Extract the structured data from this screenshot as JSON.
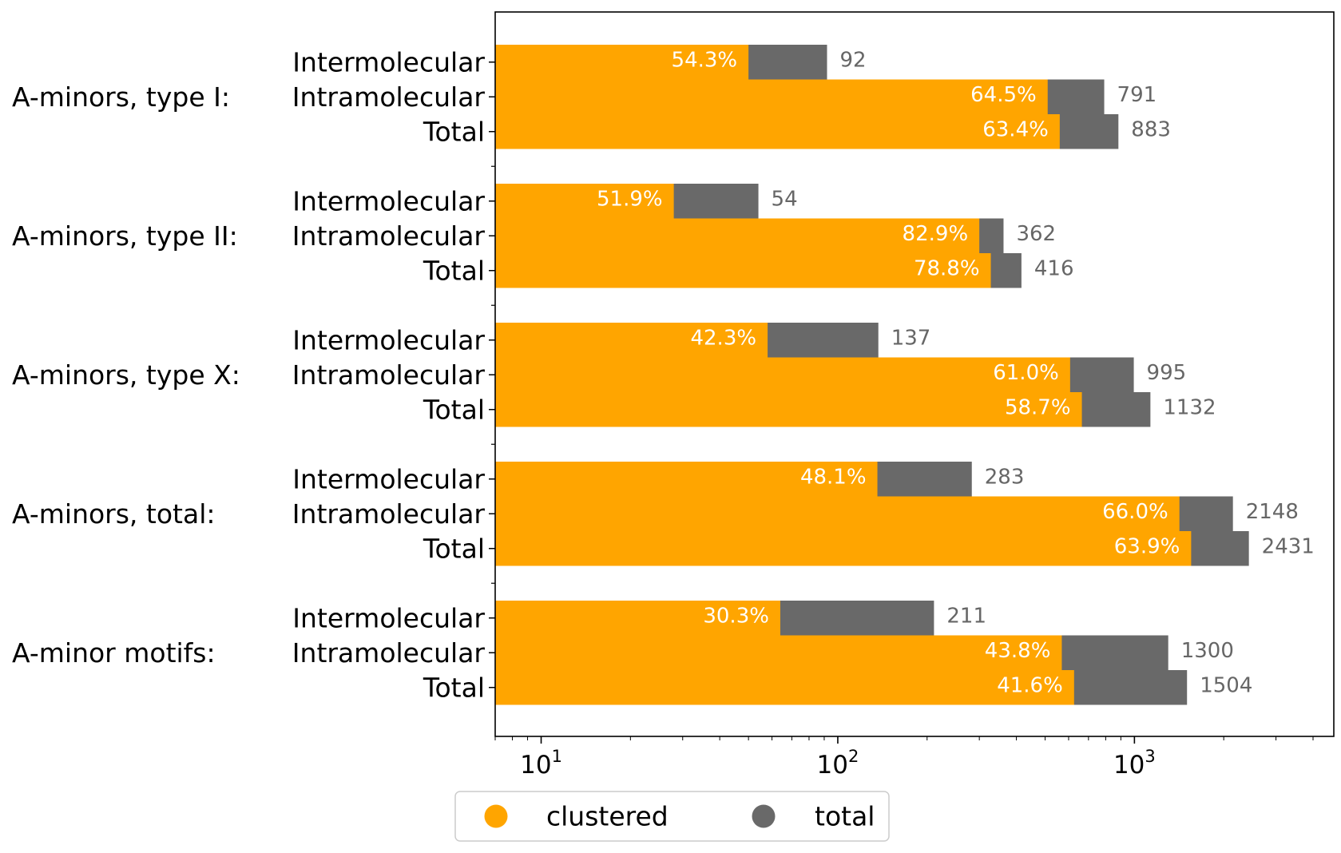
{
  "chart_data": {
    "type": "bar",
    "orientation": "horizontal",
    "x_scale": "log",
    "xlim": [
      7,
      4700
    ],
    "x_ticks": [
      {
        "base": "10",
        "exp": "1",
        "value": 10
      },
      {
        "base": "10",
        "exp": "2",
        "value": 100
      },
      {
        "base": "10",
        "exp": "3",
        "value": 1000
      }
    ],
    "grid": false,
    "legend_position": "bottom-center",
    "colors": {
      "clustered": "#ffa500",
      "total": "#696969"
    },
    "legend": [
      {
        "key": "clustered",
        "label": "clustered"
      },
      {
        "key": "total",
        "label": "total"
      }
    ],
    "groups": [
      {
        "label": "A-minors, type I:",
        "rows": [
          {
            "label": "Intermolecular",
            "total": 92,
            "clustered": 50,
            "pct_label": "54.3%",
            "total_label": "92"
          },
          {
            "label": "Intramolecular",
            "total": 791,
            "clustered": 510,
            "pct_label": "64.5%",
            "total_label": "791"
          },
          {
            "label": "Total",
            "total": 883,
            "clustered": 560,
            "pct_label": "63.4%",
            "total_label": "883"
          }
        ]
      },
      {
        "label": "A-minors, type II:",
        "rows": [
          {
            "label": "Intermolecular",
            "total": 54,
            "clustered": 28,
            "pct_label": "51.9%",
            "total_label": "54"
          },
          {
            "label": "Intramolecular",
            "total": 362,
            "clustered": 300,
            "pct_label": "82.9%",
            "total_label": "362"
          },
          {
            "label": "Total",
            "total": 416,
            "clustered": 328,
            "pct_label": "78.8%",
            "total_label": "416"
          }
        ]
      },
      {
        "label": "A-minors, type X:",
        "rows": [
          {
            "label": "Intermolecular",
            "total": 137,
            "clustered": 58,
            "pct_label": "42.3%",
            "total_label": "137"
          },
          {
            "label": "Intramolecular",
            "total": 995,
            "clustered": 607,
            "pct_label": "61.0%",
            "total_label": "995"
          },
          {
            "label": "Total",
            "total": 1132,
            "clustered": 665,
            "pct_label": "58.7%",
            "total_label": "1132"
          }
        ]
      },
      {
        "label": "A-minors, total:",
        "rows": [
          {
            "label": "Intermolecular",
            "total": 283,
            "clustered": 136,
            "pct_label": "48.1%",
            "total_label": "283"
          },
          {
            "label": "Intramolecular",
            "total": 2148,
            "clustered": 1418,
            "pct_label": "66.0%",
            "total_label": "2148"
          },
          {
            "label": "Total",
            "total": 2431,
            "clustered": 1553,
            "pct_label": "63.9%",
            "total_label": "2431"
          }
        ]
      },
      {
        "label": "A-minor motifs:",
        "rows": [
          {
            "label": "Intermolecular",
            "total": 211,
            "clustered": 64,
            "pct_label": "30.3%",
            "total_label": "211"
          },
          {
            "label": "Intramolecular",
            "total": 1300,
            "clustered": 569,
            "pct_label": "43.8%",
            "total_label": "1300"
          },
          {
            "label": "Total",
            "total": 1504,
            "clustered": 626,
            "pct_label": "41.6%",
            "total_label": "1504"
          }
        ]
      }
    ]
  }
}
